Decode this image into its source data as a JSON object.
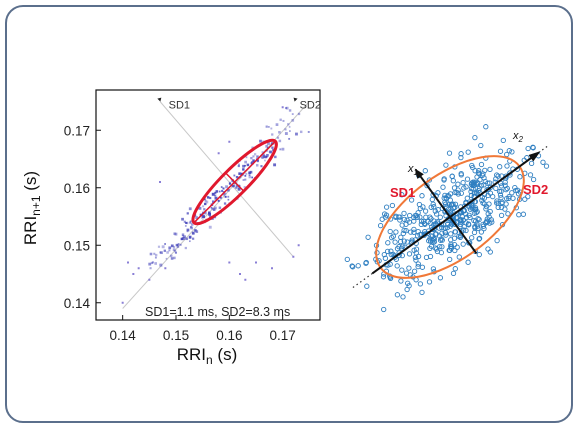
{
  "chart_data": [
    {
      "type": "scatter",
      "title": "",
      "xlabel": "RRI",
      "xlabel_subscript": "n",
      "xlabel_unit": "(s)",
      "ylabel": "RRI",
      "ylabel_subscript": "n+1",
      "ylabel_unit": "(s)",
      "xlim": [
        0.135,
        0.177
      ],
      "ylim": [
        0.137,
        0.177
      ],
      "xticks": [
        "0.14",
        "0.15",
        "0.16",
        "0.17"
      ],
      "yticks": [
        "0.14",
        "0.15",
        "0.16",
        "0.17"
      ],
      "xtick_values": [
        0.14,
        0.15,
        0.16,
        0.17
      ],
      "ytick_values": [
        0.14,
        0.15,
        0.16,
        0.17
      ],
      "grid": false,
      "colors": {
        "points": "#3d3db8",
        "ellipse": "#e0182d",
        "guide": "#c8c8c8",
        "axes": "#111111"
      },
      "density_points": [
        {
          "x": 0.146,
          "y": 0.147,
          "intensity": 0.45
        },
        {
          "x": 0.148,
          "y": 0.149,
          "intensity": 0.55
        },
        {
          "x": 0.15,
          "y": 0.15,
          "intensity": 0.7
        },
        {
          "x": 0.152,
          "y": 0.152,
          "intensity": 0.85
        },
        {
          "x": 0.154,
          "y": 0.154,
          "intensity": 1.0
        },
        {
          "x": 0.156,
          "y": 0.156,
          "intensity": 1.0
        },
        {
          "x": 0.158,
          "y": 0.158,
          "intensity": 1.0
        },
        {
          "x": 0.16,
          "y": 0.16,
          "intensity": 1.0
        },
        {
          "x": 0.162,
          "y": 0.162,
          "intensity": 1.0
        },
        {
          "x": 0.164,
          "y": 0.164,
          "intensity": 0.95
        },
        {
          "x": 0.166,
          "y": 0.166,
          "intensity": 0.85
        },
        {
          "x": 0.168,
          "y": 0.168,
          "intensity": 0.7
        },
        {
          "x": 0.17,
          "y": 0.17,
          "intensity": 0.55
        },
        {
          "x": 0.172,
          "y": 0.172,
          "intensity": 0.4
        }
      ],
      "outliers": [
        {
          "x": 0.141,
          "y": 0.147
        },
        {
          "x": 0.142,
          "y": 0.145
        },
        {
          "x": 0.143,
          "y": 0.146
        },
        {
          "x": 0.14,
          "y": 0.14
        },
        {
          "x": 0.145,
          "y": 0.144
        },
        {
          "x": 0.148,
          "y": 0.146
        },
        {
          "x": 0.147,
          "y": 0.161
        },
        {
          "x": 0.16,
          "y": 0.147
        },
        {
          "x": 0.162,
          "y": 0.145
        },
        {
          "x": 0.165,
          "y": 0.147
        },
        {
          "x": 0.168,
          "y": 0.146
        },
        {
          "x": 0.172,
          "y": 0.148
        },
        {
          "x": 0.173,
          "y": 0.15
        },
        {
          "x": 0.163,
          "y": 0.144
        },
        {
          "x": 0.17,
          "y": 0.174
        },
        {
          "x": 0.16,
          "y": 0.168
        },
        {
          "x": 0.158,
          "y": 0.166
        }
      ],
      "ellipse": {
        "center": [
          0.161,
          0.161
        ],
        "sd1": 0.0011,
        "sd2": 0.0083
      },
      "annotations": {
        "sd1_label": "SD1",
        "sd2_label": "SD2",
        "stats_label": "SD1=1.1 ms, SD2=8.3 ms"
      }
    },
    {
      "type": "scatter",
      "title": "",
      "colors": {
        "points": "#2f7fc1",
        "ellipse": "#f07838",
        "sd_label": "#e0182d",
        "axis_arrow": "#111111",
        "identity_line": "#333333"
      },
      "labels": {
        "sd1": "SD1",
        "sd2": "SD2",
        "x1": "x",
        "x1_sub": "1",
        "x2": "x",
        "x2_sub": "2"
      },
      "point_count": 520
    }
  ]
}
